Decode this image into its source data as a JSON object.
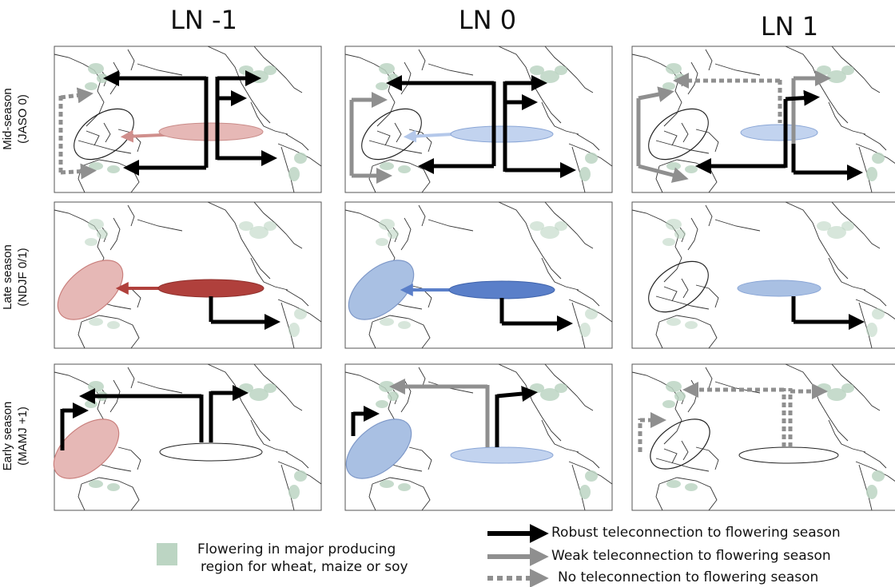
{
  "columns": [
    {
      "title": "LN -1"
    },
    {
      "title": "LN 0"
    },
    {
      "title": "LN 1"
    }
  ],
  "rows": [
    {
      "label_line1": "Mid-season",
      "label_line2": "(JASO 0)"
    },
    {
      "label_line1": "Late season",
      "label_line2": "(NDJF 0/1)"
    },
    {
      "label_line1": "Early season",
      "label_line2": "(MAMJ +1)"
    }
  ],
  "legend": {
    "flowering_line1": "Flowering in major producing",
    "flowering_line2": "region for wheat, maize or soy",
    "robust": "Robust teleconnection to flowering season",
    "weak": "Weak teleconnection to flowering season",
    "none": "No teleconnection to flowering season"
  },
  "colors": {
    "robust_arrow": "#000000",
    "weak_arrow": "#8f8f8f",
    "no_arrow": "#8f8f8f",
    "flowering": "#bcd5c3",
    "warm_light": "#e6b8b6",
    "warm_dark": "#b0403c",
    "cool_light": "#c2d3ef",
    "cool_mid": "#a9c0e3",
    "cool_dark": "#5a7fc9"
  },
  "panels": [
    {
      "row": 0,
      "col": 0,
      "nino": "warm_light",
      "ia_fill": "none",
      "ia_teleconnection": "warm_light"
    },
    {
      "row": 0,
      "col": 1,
      "nino": "cool_light",
      "ia_fill": "none",
      "ia_teleconnection": "cool_light"
    },
    {
      "row": 0,
      "col": 2,
      "nino": "cool_light",
      "ia_fill": "none",
      "ia_teleconnection": "none"
    },
    {
      "row": 1,
      "col": 0,
      "nino": "warm_dark",
      "ia_fill": "warm_light",
      "ia_teleconnection": "warm_dark"
    },
    {
      "row": 1,
      "col": 1,
      "nino": "cool_dark",
      "ia_fill": "cool_mid",
      "ia_teleconnection": "cool_dark"
    },
    {
      "row": 1,
      "col": 2,
      "nino": "cool_mid",
      "ia_fill": "none",
      "ia_teleconnection": "none"
    },
    {
      "row": 2,
      "col": 0,
      "nino": "white",
      "ia_fill": "warm_light",
      "ia_teleconnection": "none"
    },
    {
      "row": 2,
      "col": 1,
      "nino": "cool_light",
      "ia_fill": "cool_mid",
      "ia_teleconnection": "none"
    },
    {
      "row": 2,
      "col": 2,
      "nino": "white",
      "ia_fill": "none",
      "ia_teleconnection": "none"
    }
  ]
}
